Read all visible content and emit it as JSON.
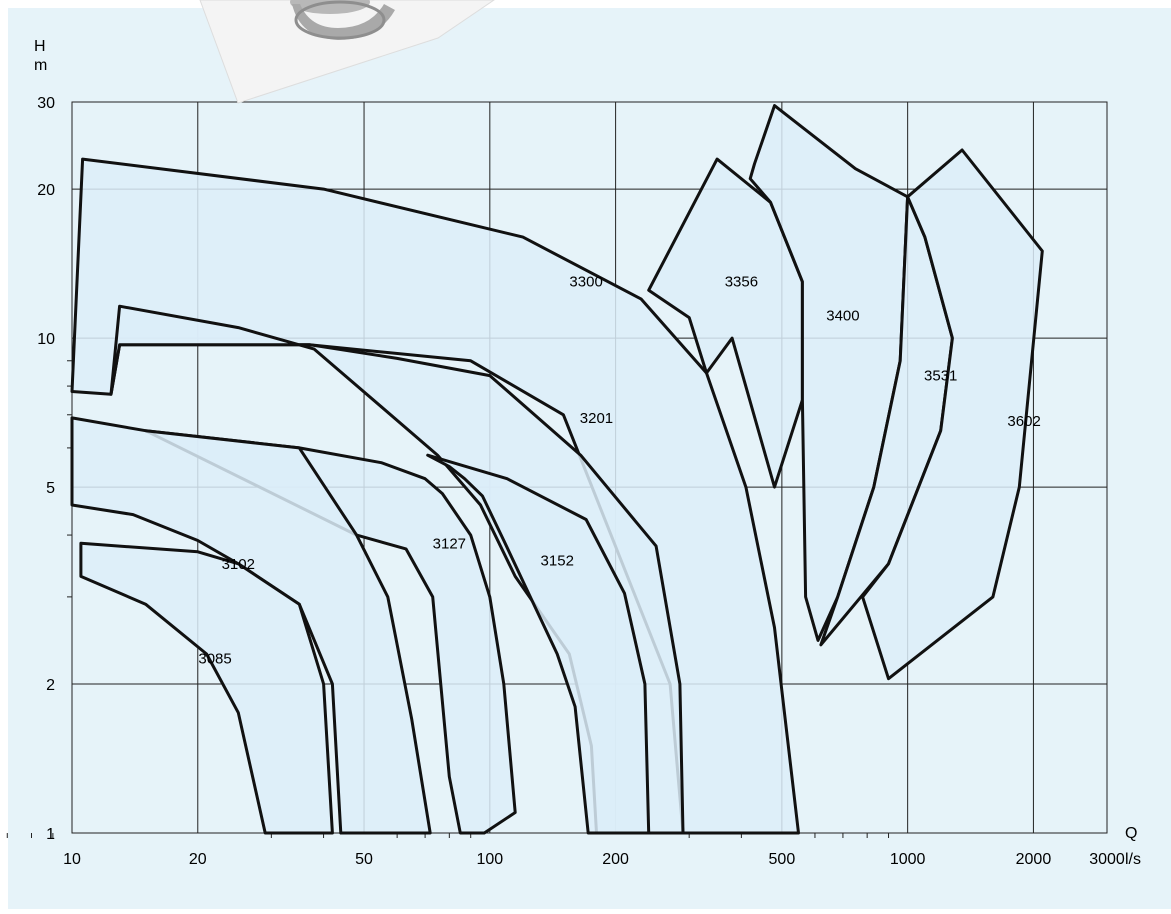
{
  "chart_data": {
    "type": "area",
    "xscale": "log",
    "yscale": "log",
    "xlim": [
      10,
      3000
    ],
    "ylim": [
      1,
      30
    ],
    "xlabel_lines": [
      "Q",
      "l/s"
    ],
    "ylabel_lines": [
      "H",
      "m"
    ],
    "x_ticks": [
      {
        "value": 10,
        "label": "10"
      },
      {
        "value": 20,
        "label": "20"
      },
      {
        "value": 50,
        "label": "50"
      },
      {
        "value": 100,
        "label": "100"
      },
      {
        "value": 200,
        "label": "200"
      },
      {
        "value": 500,
        "label": "500"
      },
      {
        "value": 1000,
        "label": "1000"
      },
      {
        "value": 2000,
        "label": "2000"
      },
      {
        "value": 3000,
        "label": "3000"
      }
    ],
    "y_ticks": [
      {
        "value": 1,
        "label": "1"
      },
      {
        "value": 2,
        "label": "2"
      },
      {
        "value": 5,
        "label": "5"
      },
      {
        "value": 10,
        "label": "10"
      },
      {
        "value": 20,
        "label": "20"
      },
      {
        "value": 30,
        "label": "30"
      }
    ],
    "grid": true,
    "colors": {
      "fill": "#dcedf9",
      "stroke": "#111111",
      "background": "#e6f3f9",
      "grid": "#222222"
    },
    "series": [
      {
        "name": "3300",
        "label_at": [
          170,
          13
        ],
        "polygon": [
          [
            10,
            7.8
          ],
          [
            10.6,
            23
          ],
          [
            40,
            20
          ],
          [
            120,
            16
          ],
          [
            230,
            12
          ],
          [
            330,
            8.5
          ],
          [
            410,
            5
          ],
          [
            480,
            2.6
          ],
          [
            548,
            1
          ],
          [
            290,
            1
          ],
          [
            270,
            2
          ],
          [
            150,
            7
          ],
          [
            90,
            9
          ],
          [
            37,
            9.7
          ],
          [
            13,
            9.7
          ],
          [
            12.4,
            7.7
          ]
        ]
      },
      {
        "name": "3201",
        "label_at": [
          180,
          6.9
        ],
        "polygon": [
          [
            12.4,
            7.7
          ],
          [
            13,
            11.6
          ],
          [
            25,
            10.5
          ],
          [
            38,
            9.5
          ],
          [
            75,
            5.8
          ],
          [
            95,
            4.6
          ],
          [
            115,
            3.3
          ],
          [
            155,
            2.3
          ],
          [
            175,
            1.5
          ],
          [
            180,
            1
          ],
          [
            290,
            1
          ],
          [
            285,
            2
          ],
          [
            250,
            3.8
          ],
          [
            165,
            5.8
          ],
          [
            100,
            8.4
          ],
          [
            60,
            9.1
          ],
          [
            37,
            9.7
          ],
          [
            13,
            9.7
          ]
        ]
      },
      {
        "name": "3127",
        "label_at": [
          80,
          3.85
        ],
        "polygon": [
          [
            15,
            6.5
          ],
          [
            35,
            6
          ],
          [
            55,
            5.6
          ],
          [
            70,
            5.2
          ],
          [
            77,
            4.85
          ],
          [
            90,
            4
          ],
          [
            100,
            3
          ],
          [
            108,
            2
          ],
          [
            115,
            1.1
          ],
          [
            97,
            1
          ],
          [
            85,
            1
          ],
          [
            80,
            1.3
          ],
          [
            73,
            3
          ],
          [
            63,
            3.75
          ],
          [
            48,
            4
          ]
        ]
      },
      {
        "name": "3152",
        "label_at": [
          145,
          3.55
        ],
        "polygon": [
          [
            71,
            5.8
          ],
          [
            110,
            5.2
          ],
          [
            170,
            4.3
          ],
          [
            210,
            3.05
          ],
          [
            235,
            2
          ],
          [
            240,
            1
          ],
          [
            172,
            1
          ],
          [
            160,
            1.8
          ],
          [
            145,
            2.3
          ],
          [
            125,
            3
          ],
          [
            108,
            3.9
          ],
          [
            96,
            4.8
          ],
          [
            87,
            5.2
          ],
          [
            80,
            5.5
          ]
        ]
      },
      {
        "name": "3102",
        "label_at": [
          25,
          3.5
        ],
        "polygon": [
          [
            10,
            4.6
          ],
          [
            10,
            6.9
          ],
          [
            15,
            6.5
          ],
          [
            35,
            6
          ],
          [
            48,
            4
          ],
          [
            57,
            3
          ],
          [
            65,
            1.7
          ],
          [
            72,
            1
          ],
          [
            44,
            1
          ],
          [
            42,
            2
          ],
          [
            35,
            2.9
          ],
          [
            25,
            3.5
          ],
          [
            20,
            3.9
          ],
          [
            14,
            4.4
          ]
        ]
      },
      {
        "name": "3085",
        "label_at": [
          22,
          2.25
        ],
        "polygon": [
          [
            10.5,
            3.85
          ],
          [
            10.5,
            3.3
          ],
          [
            15,
            2.9
          ],
          [
            21,
            2.3
          ],
          [
            25,
            1.75
          ],
          [
            29,
            1
          ],
          [
            42,
            1
          ],
          [
            40,
            2
          ],
          [
            35,
            2.9
          ],
          [
            25,
            3.5
          ],
          [
            20,
            3.7
          ]
        ]
      },
      {
        "name": "3356",
        "label_at": [
          400,
          13
        ],
        "polygon": [
          [
            240,
            12.5
          ],
          [
            350,
            23
          ],
          [
            470,
            18.8
          ],
          [
            560,
            13
          ],
          [
            560,
            7.5
          ],
          [
            480,
            5
          ],
          [
            380,
            10
          ],
          [
            330,
            8.5
          ],
          [
            300,
            11
          ]
        ]
      },
      {
        "name": "3400",
        "label_at": [
          700,
          11.1
        ],
        "polygon": [
          [
            430,
            22.5
          ],
          [
            480,
            29.5
          ],
          [
            750,
            22
          ],
          [
            1000,
            19.3
          ],
          [
            960,
            9
          ],
          [
            830,
            5
          ],
          [
            680,
            3
          ],
          [
            610,
            2.45
          ],
          [
            570,
            3
          ],
          [
            560,
            7.5
          ],
          [
            560,
            13
          ],
          [
            470,
            18.8
          ],
          [
            420,
            21
          ]
        ]
      },
      {
        "name": "3531",
        "label_at": [
          1200,
          8.4
        ],
        "polygon": [
          [
            1000,
            19.3
          ],
          [
            1100,
            16
          ],
          [
            1280,
            10
          ],
          [
            1200,
            6.5
          ],
          [
            900,
            3.5
          ],
          [
            620,
            2.4
          ],
          [
            680,
            3
          ],
          [
            830,
            5
          ],
          [
            960,
            9
          ]
        ]
      },
      {
        "name": "3602",
        "label_at": [
          1900,
          6.8
        ],
        "polygon": [
          [
            1000,
            19.3
          ],
          [
            1350,
            24
          ],
          [
            2100,
            15
          ],
          [
            1850,
            5
          ],
          [
            1600,
            3
          ],
          [
            900,
            2.05
          ],
          [
            780,
            3
          ],
          [
            900,
            3.5
          ],
          [
            1200,
            6.5
          ],
          [
            1280,
            10
          ],
          [
            1100,
            16
          ]
        ]
      }
    ]
  }
}
